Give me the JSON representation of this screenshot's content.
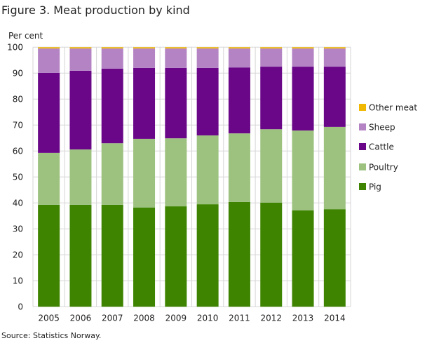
{
  "chart_data": {
    "type": "bar",
    "stacked": true,
    "title": "Figure 3. Meat production by kind",
    "ylabel": "Per cent",
    "xlabel": "",
    "source": "Source: Statistics Norway.",
    "ylim": [
      0,
      100
    ],
    "yticks": [
      0,
      10,
      20,
      30,
      40,
      50,
      60,
      70,
      80,
      90,
      100
    ],
    "grid": true,
    "legend": "right",
    "categories": [
      "2005",
      "2006",
      "2007",
      "2008",
      "2009",
      "2010",
      "2011",
      "2012",
      "2013",
      "2014"
    ],
    "series": [
      {
        "name": "Pig",
        "color": "#3e8400",
        "values": [
          39.3,
          39.3,
          39.3,
          38.2,
          38.7,
          39.5,
          40.4,
          40.1,
          37.1,
          37.6
        ]
      },
      {
        "name": "Poultry",
        "color": "#9dc280",
        "values": [
          20.0,
          21.3,
          23.7,
          26.5,
          26.2,
          26.5,
          26.4,
          28.3,
          30.8,
          31.7
        ]
      },
      {
        "name": "Cattle",
        "color": "#6a0788",
        "values": [
          30.8,
          30.3,
          28.7,
          27.3,
          27.1,
          26.0,
          25.4,
          24.1,
          24.6,
          23.2
        ]
      },
      {
        "name": "Sheep",
        "color": "#b483c4",
        "values": [
          9.4,
          8.6,
          7.8,
          7.5,
          7.5,
          7.5,
          7.3,
          7.0,
          7.0,
          7.0
        ]
      },
      {
        "name": "Other meat",
        "color": "#f0b800",
        "values": [
          0.5,
          0.5,
          0.5,
          0.5,
          0.5,
          0.5,
          0.5,
          0.5,
          0.5,
          0.5
        ]
      }
    ]
  }
}
